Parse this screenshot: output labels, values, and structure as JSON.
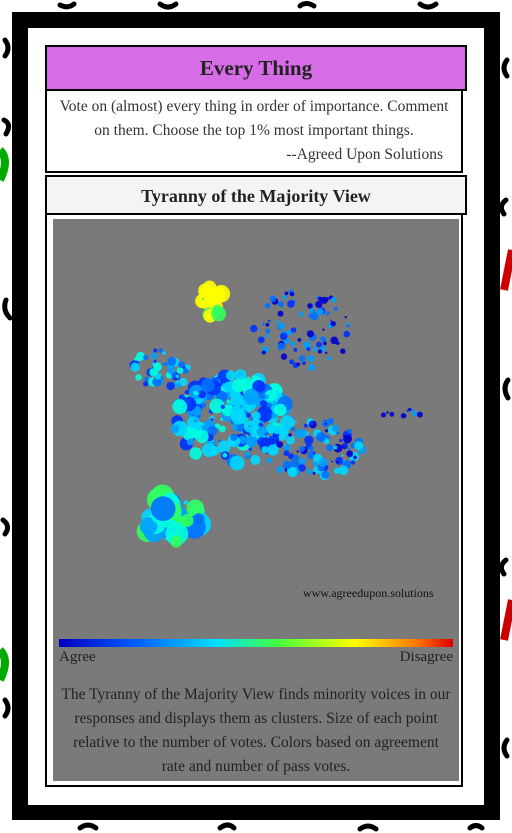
{
  "header": {
    "title": "Every Thing",
    "description": "Vote on (almost) every thing in order of importance. Comment on them. Choose the top 1% most important things.",
    "attribution": "--Agreed Upon Solutions"
  },
  "view": {
    "title": "Tyranny of the Majority View",
    "watermark": "www.agreedupon.solutions",
    "legend_low": "Agree",
    "legend_high": "Disagree",
    "caption": "The Tyranny of the Majority View finds minority voices in our responses and displays them as clusters. Size of each point relative to the number of votes. Colors based on agreement rate and number of pass votes."
  }
}
